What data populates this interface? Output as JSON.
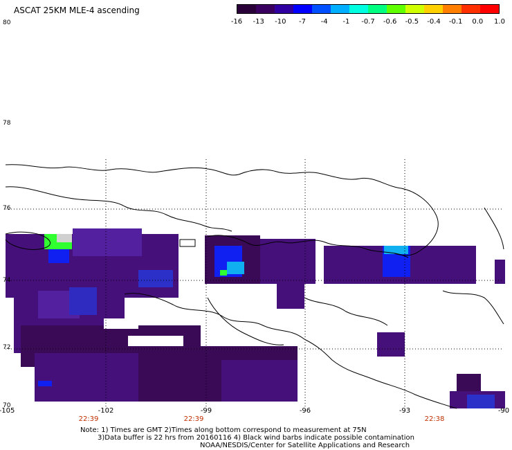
{
  "title": "ASCAT 25KM MLE-4 ascending",
  "colorbar": {
    "colors": [
      "#2a0038",
      "#3a0060",
      "#3000a0",
      "#0000ff",
      "#0050ff",
      "#00b0ff",
      "#00ffe0",
      "#00ff80",
      "#60ff00",
      "#d0ff00",
      "#ffd000",
      "#ff8000",
      "#ff3000",
      "#ff0000"
    ],
    "tick_labels": [
      "-16",
      "-13",
      "-10",
      "-7",
      "-4",
      "-1",
      "-0.7",
      "-0.6",
      "-0.5",
      "-0.4",
      "-0.1",
      "0.0",
      "1.0"
    ]
  },
  "latitude_labels": [
    "80",
    "78",
    "76",
    "74",
    "72",
    "70"
  ],
  "longitude_labels": [
    "-105",
    "-102",
    "-99",
    "-96",
    "-93",
    "-90"
  ],
  "time_labels": [
    "22:39",
    "22:39",
    "22:38"
  ],
  "notes": {
    "line1": "Note: 1) Times are GMT 2)Times along bottom correspond to measurement at 75N",
    "line2": "3)Data buffer is 22 hrs from 20160116 4) Black wind barbs indicate possible contamination",
    "line3": "NOAA/NESDIS/Center for Satellite Applications and Research"
  },
  "map_colors": {
    "dark_purple": "#3a0a56",
    "purple": "#46107a",
    "violet": "#5320a0",
    "blue": "#1020f0",
    "cyan": "#10b0f0",
    "green": "#30ff30",
    "coast": "#000000"
  }
}
